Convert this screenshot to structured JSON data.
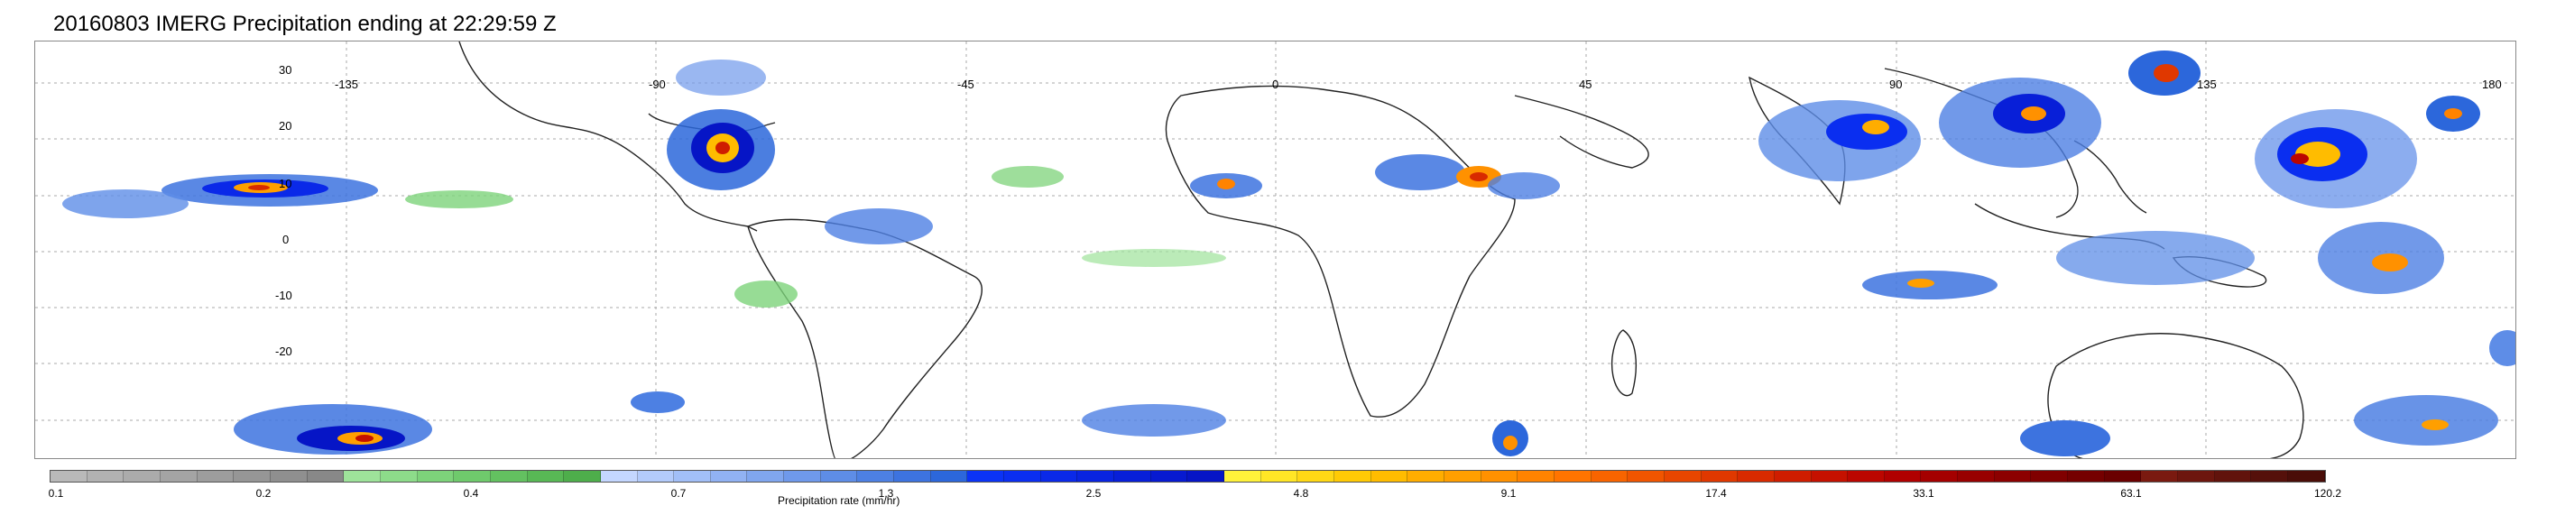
{
  "title": "20160803 IMERG Precipitation ending at 22:29:59 Z",
  "map": {
    "lat_labels": [
      "30",
      "20",
      "10",
      "0",
      "-10",
      "-20"
    ],
    "lon_labels": [
      "-135",
      "-90",
      "-45",
      "0",
      "45",
      "90",
      "135",
      "180"
    ],
    "lat_values": [
      30,
      20,
      10,
      0,
      -10,
      -20
    ],
    "lon_values": [
      -135,
      -90,
      -45,
      0,
      45,
      90,
      135,
      180
    ],
    "lon_range": [
      -180,
      180
    ],
    "lat_range": [
      -37,
      37
    ],
    "grid": "dotted"
  },
  "colorbar": {
    "label": "Precipitation rate (mm/hr)",
    "ticks": [
      "0.1",
      "0.2",
      "0.4",
      "0.7",
      "1.3",
      "2.5",
      "4.8",
      "9.1",
      "17.4",
      "33.1",
      "63.1",
      "120.2"
    ],
    "colors": [
      "#b9b9b9",
      "#b2b2b2",
      "#ababab",
      "#a4a4a4",
      "#9d9d9d",
      "#969696",
      "#8f8f8f",
      "#888888",
      "#9ee39a",
      "#8ddc8a",
      "#7dd37a",
      "#6fca6c",
      "#63c160",
      "#58b855",
      "#4eae4b",
      "#c4d7ff",
      "#b3cbfb",
      "#a2bff7",
      "#91b2f3",
      "#80a6ef",
      "#6f99eb",
      "#5e8de7",
      "#4d80e3",
      "#3d73df",
      "#2c67db",
      "#0b33f5",
      "#0a2ef0",
      "#0a29e8",
      "#0924e0",
      "#081fd8",
      "#071ad0",
      "#0615c6",
      "#fff23a",
      "#ffe626",
      "#ffd815",
      "#ffca05",
      "#ffbc00",
      "#ffad00",
      "#ff9f00",
      "#ff9100",
      "#ff8300",
      "#ff7400",
      "#f86400",
      "#f05500",
      "#e84600",
      "#e03800",
      "#d82a00",
      "#cf1d00",
      "#c51100",
      "#bb0600",
      "#b00000",
      "#a40000",
      "#980000",
      "#8c0000",
      "#800000",
      "#750000",
      "#6a0000",
      "#7a1a10",
      "#6d160e",
      "#61130c",
      "#55100a",
      "#4a0d08"
    ]
  }
}
